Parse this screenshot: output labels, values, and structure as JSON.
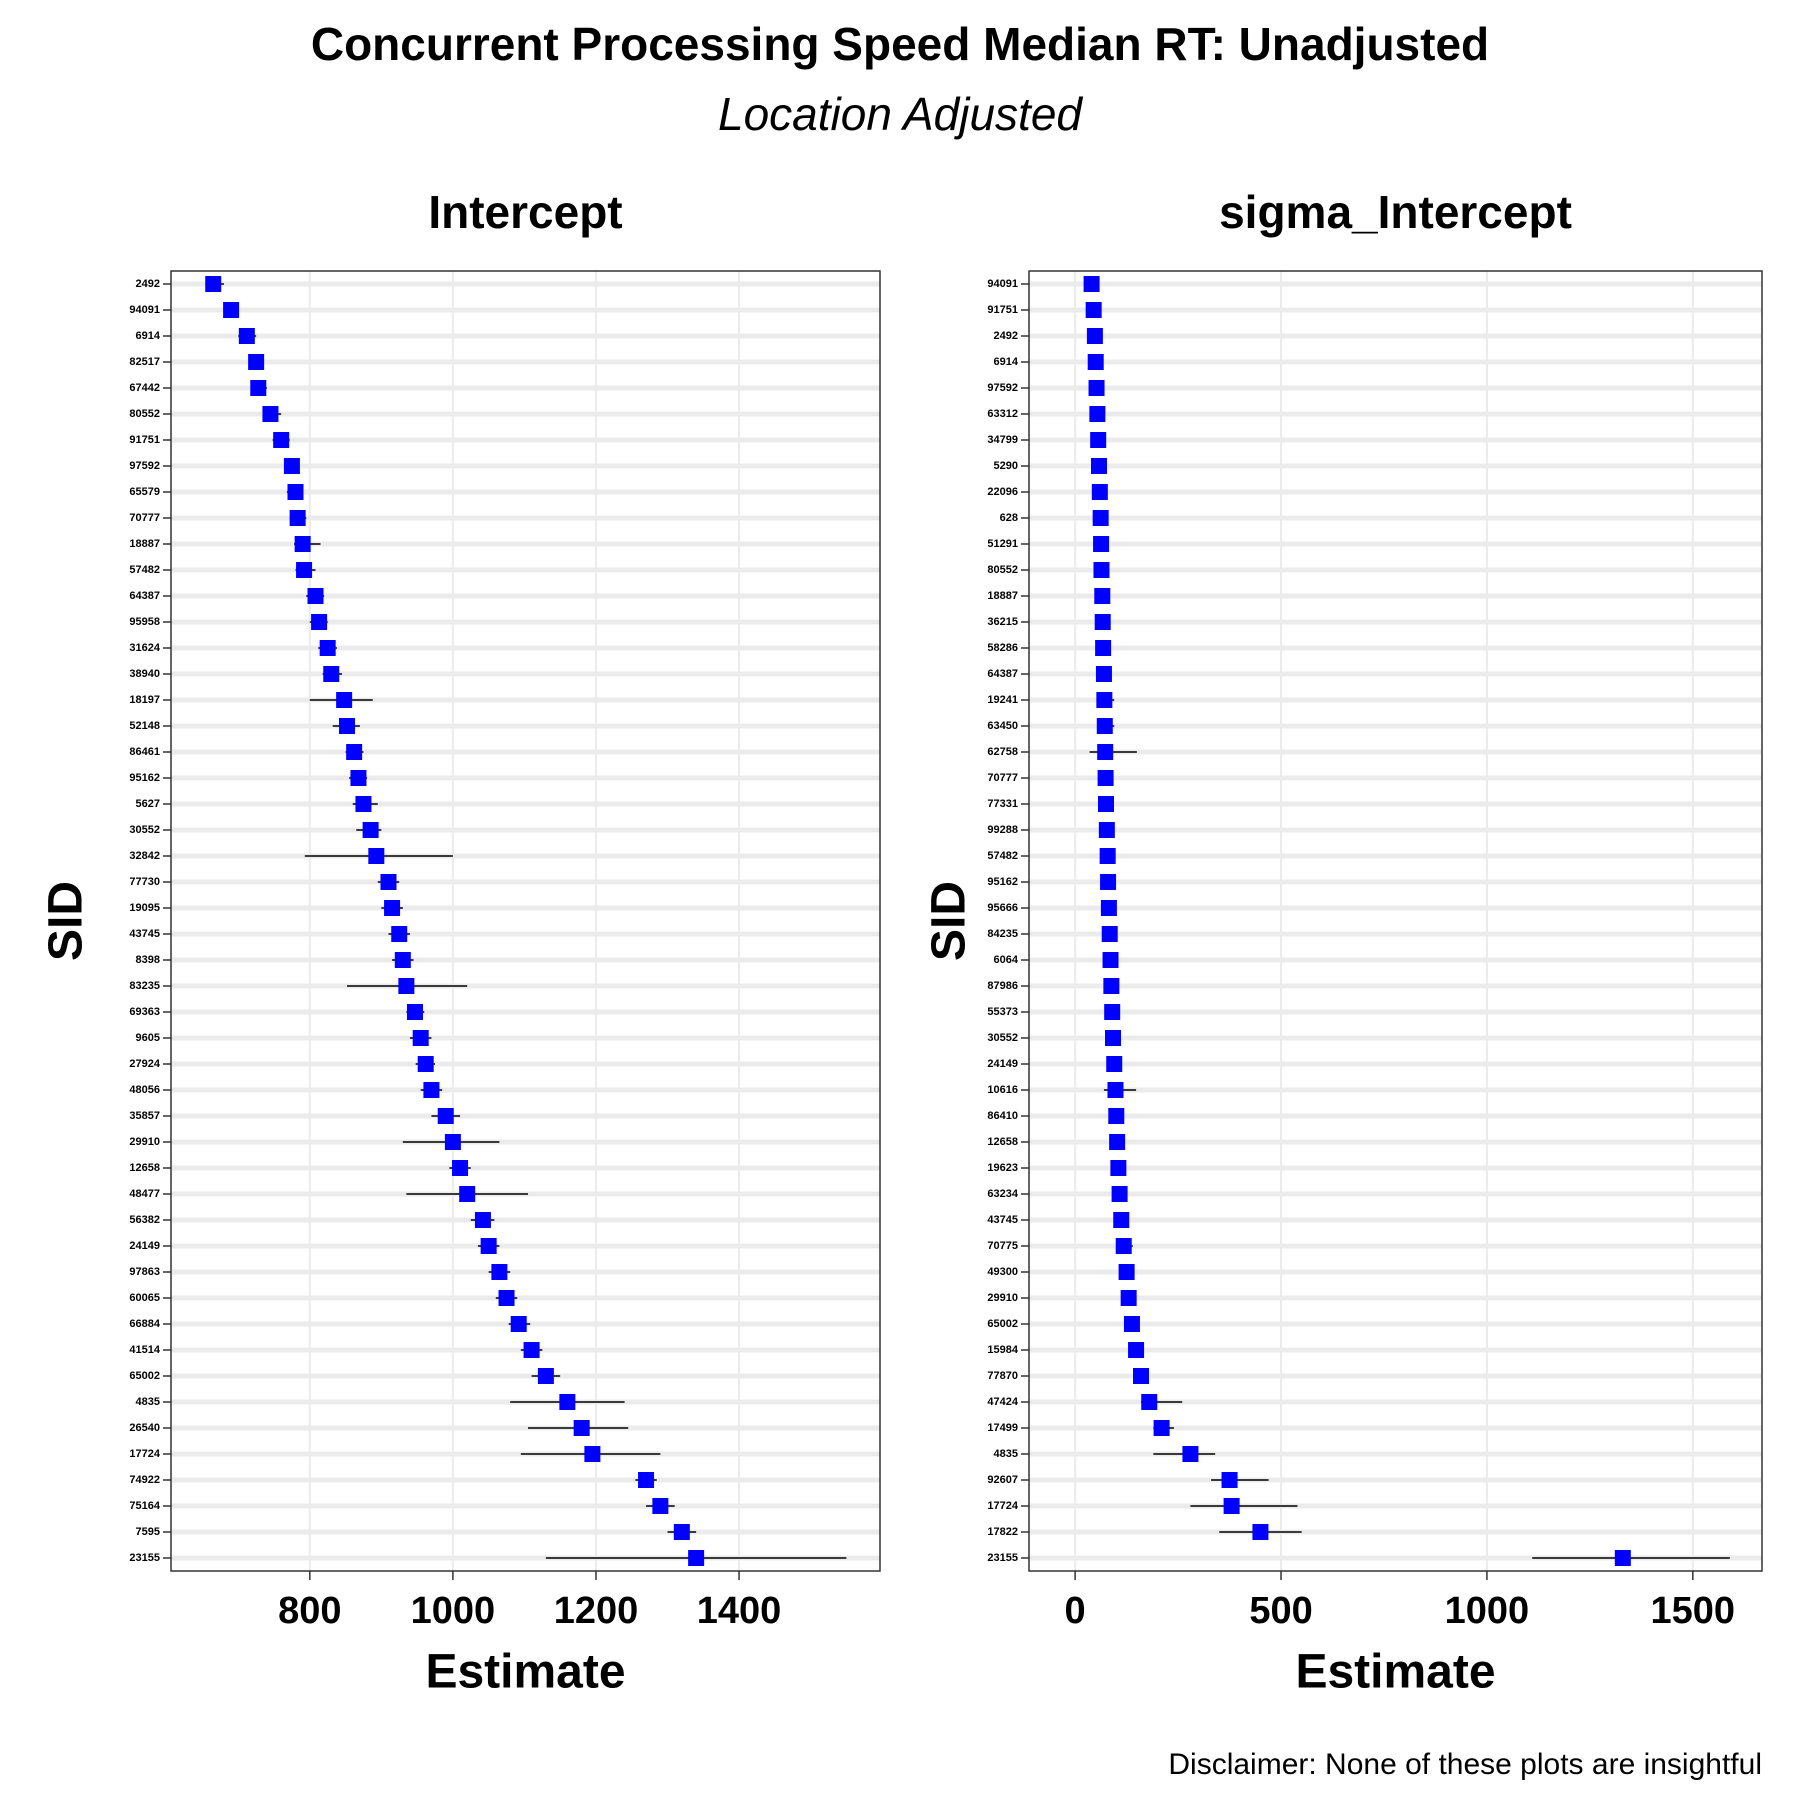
{
  "title": "Concurrent Processing Speed Median RT: Unadjusted",
  "subtitle": "Location Adjusted",
  "caption": "Disclaimer: None of these plots are insightful",
  "chart_data": [
    {
      "type": "errorbar",
      "title": "Intercept",
      "x_label": "Estimate",
      "y_label": "SID",
      "color": "#0000ff",
      "grid": true,
      "xlim": [
        606,
        1597
      ],
      "xticks": [
        800,
        1000,
        1200,
        1400
      ],
      "categories": [
        "2492",
        "94091",
        "6914",
        "82517",
        "67442",
        "80552",
        "91751",
        "97592",
        "65579",
        "70777",
        "18887",
        "57482",
        "64387",
        "95958",
        "31624",
        "38940",
        "18197",
        "52148",
        "86461",
        "95162",
        "5627",
        "30552",
        "32842",
        "77730",
        "19095",
        "43745",
        "8398",
        "83235",
        "69363",
        "9605",
        "27924",
        "48056",
        "35857",
        "29910",
        "12658",
        "48477",
        "56382",
        "24149",
        "97863",
        "60065",
        "66884",
        "41514",
        "65002",
        "4835",
        "26540",
        "17724",
        "74922",
        "75164",
        "7595",
        "23155"
      ],
      "values": [
        665,
        690,
        712,
        725,
        728,
        745,
        760,
        775,
        780,
        783,
        790,
        792,
        808,
        813,
        825,
        830,
        848,
        852,
        862,
        868,
        875,
        885,
        893,
        910,
        915,
        925,
        930,
        935,
        947,
        955,
        962,
        970,
        990,
        1000,
        1010,
        1020,
        1042,
        1050,
        1065,
        1075,
        1092,
        1110,
        1130,
        1160,
        1180,
        1195,
        1270,
        1290,
        1320,
        1340
      ],
      "lower": [
        655,
        680,
        700,
        715,
        718,
        735,
        748,
        765,
        768,
        772,
        778,
        780,
        795,
        800,
        812,
        818,
        800,
        832,
        850,
        855,
        860,
        865,
        793,
        895,
        900,
        910,
        915,
        852,
        935,
        940,
        948,
        955,
        970,
        930,
        995,
        935,
        1025,
        1035,
        1050,
        1060,
        1078,
        1095,
        1110,
        1080,
        1105,
        1095,
        1255,
        1270,
        1300,
        1130
      ],
      "upper": [
        680,
        700,
        725,
        735,
        740,
        760,
        772,
        785,
        790,
        795,
        815,
        808,
        820,
        825,
        838,
        845,
        888,
        870,
        875,
        880,
        895,
        900,
        1000,
        925,
        930,
        940,
        945,
        1020,
        960,
        970,
        975,
        985,
        1010,
        1065,
        1025,
        1105,
        1058,
        1065,
        1080,
        1090,
        1108,
        1125,
        1150,
        1240,
        1245,
        1290,
        1285,
        1310,
        1340,
        1550
      ]
    },
    {
      "type": "errorbar",
      "title": "sigma_Intercept",
      "x_label": "Estimate",
      "y_label": "SID",
      "color": "#0000ff",
      "grid": true,
      "xlim": [
        -112,
        1668
      ],
      "xticks": [
        0,
        500,
        1000,
        1500
      ],
      "categories": [
        "94091",
        "91751",
        "2492",
        "6914",
        "97592",
        "63312",
        "34799",
        "5290",
        "22096",
        "628",
        "51291",
        "80552",
        "18887",
        "36215",
        "58286",
        "64387",
        "19241",
        "63450",
        "62758",
        "70777",
        "77331",
        "99288",
        "57482",
        "95162",
        "95666",
        "84235",
        "6064",
        "87986",
        "55373",
        "30552",
        "24149",
        "10616",
        "86410",
        "12658",
        "19623",
        "63234",
        "43745",
        "70775",
        "49300",
        "29910",
        "65002",
        "15984",
        "77870",
        "47424",
        "17499",
        "4835",
        "92607",
        "17724",
        "17822",
        "23155"
      ],
      "values": [
        40,
        45,
        48,
        50,
        52,
        54,
        56,
        58,
        60,
        62,
        63,
        64,
        66,
        67,
        68,
        70,
        71,
        72,
        73,
        74,
        75,
        77,
        79,
        80,
        82,
        84,
        86,
        88,
        90,
        92,
        95,
        98,
        100,
        102,
        105,
        108,
        112,
        118,
        125,
        130,
        138,
        148,
        160,
        180,
        210,
        280,
        375,
        380,
        450,
        1330
      ],
      "lower": [
        35,
        40,
        42,
        44,
        46,
        47,
        49,
        50,
        52,
        54,
        55,
        56,
        58,
        59,
        60,
        61,
        62,
        63,
        35,
        65,
        66,
        68,
        70,
        71,
        73,
        75,
        77,
        79,
        81,
        83,
        86,
        70,
        90,
        92,
        95,
        98,
        102,
        100,
        110,
        115,
        122,
        132,
        145,
        160,
        190,
        190,
        330,
        280,
        350,
        1110
      ],
      "upper": [
        48,
        52,
        55,
        57,
        60,
        62,
        64,
        66,
        68,
        70,
        80,
        72,
        74,
        76,
        77,
        78,
        95,
        95,
        150,
        82,
        84,
        86,
        88,
        90,
        92,
        94,
        96,
        98,
        100,
        102,
        105,
        148,
        110,
        112,
        115,
        118,
        122,
        140,
        140,
        145,
        155,
        165,
        175,
        260,
        240,
        340,
        470,
        540,
        550,
        1590
      ]
    }
  ]
}
